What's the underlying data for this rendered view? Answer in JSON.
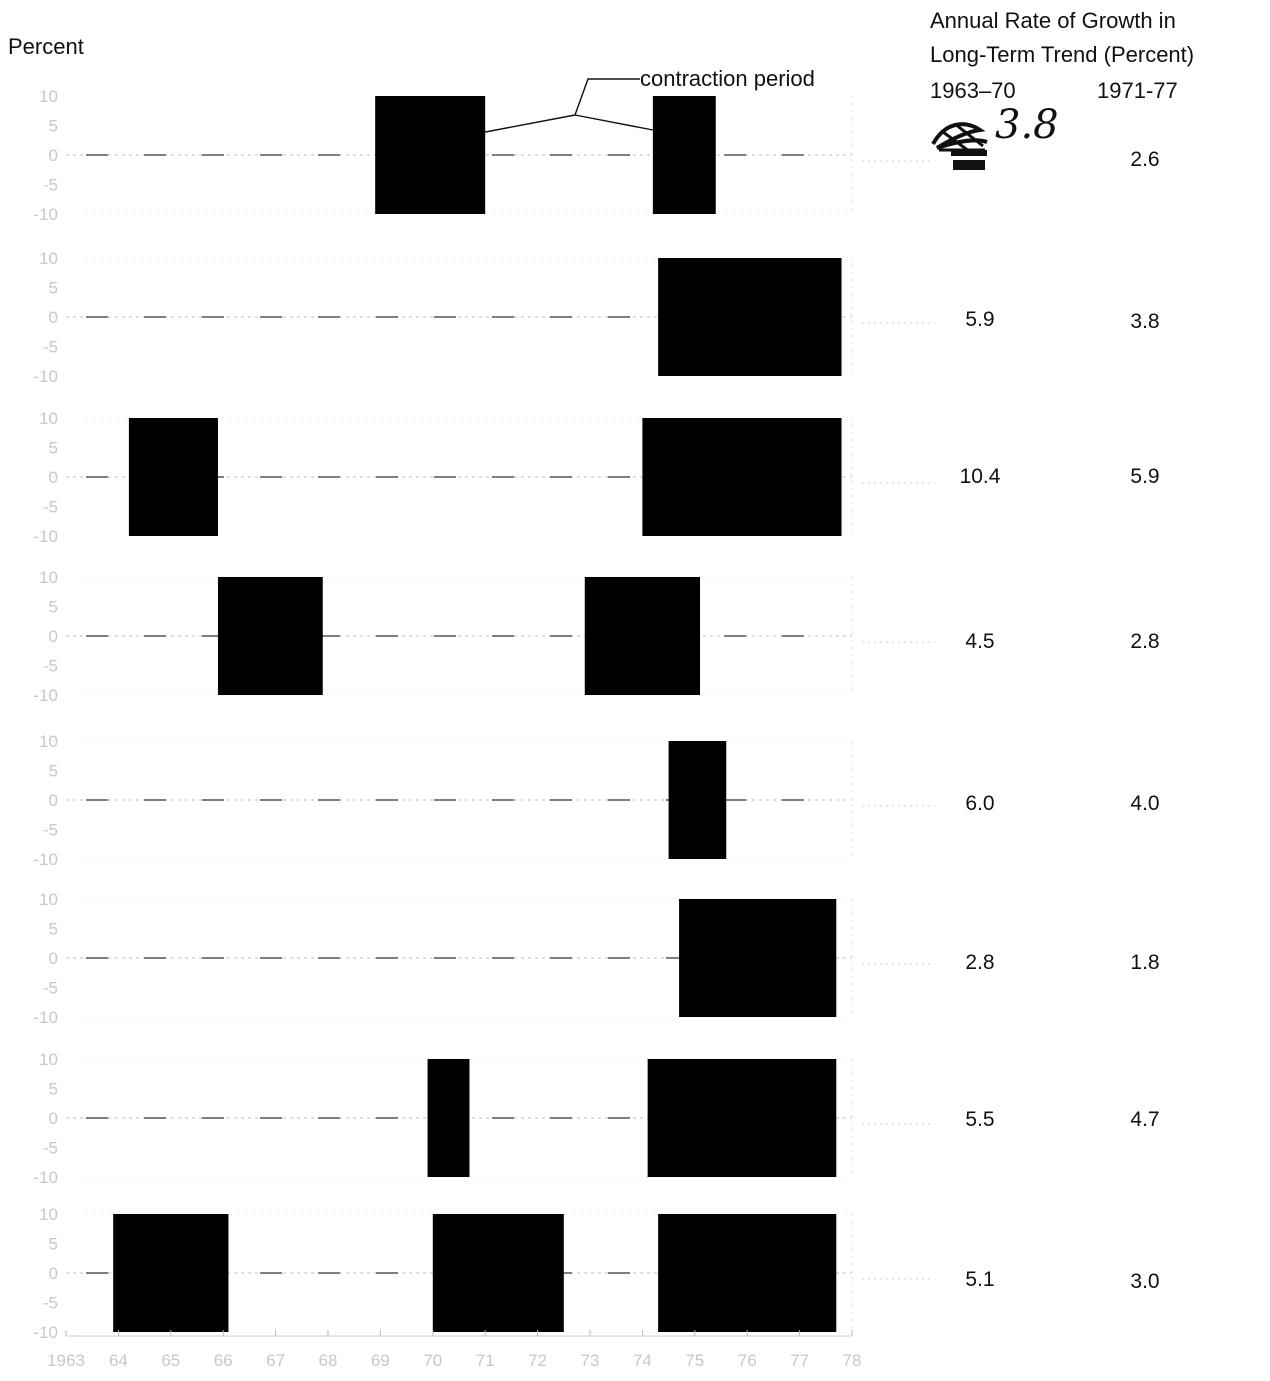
{
  "header": {
    "y_unit": "Percent",
    "annotation": "contraction period",
    "rate_title_line1": "Annual Rate of Growth in",
    "rate_title_line2": "Long-Term Trend (Percent)",
    "col1_label": "1963–70",
    "col2_label": "1971-77",
    "handwritten_value": "3.8"
  },
  "chart_data": {
    "type": "bar",
    "xlabel": "",
    "ylabel": "Percent",
    "x_tick_labels": [
      "1963",
      "64",
      "65",
      "66",
      "67",
      "68",
      "69",
      "70",
      "71",
      "72",
      "73",
      "74",
      "75",
      "76",
      "77",
      "78"
    ],
    "xlim": [
      1963,
      1978
    ],
    "y_tick_labels": [
      "10",
      "5",
      "0",
      "-5",
      "-10"
    ],
    "ylim": [
      -10,
      10
    ],
    "panels": [
      {
        "contraction_periods": [
          [
            1968.9,
            1971.0
          ],
          [
            1974.2,
            1975.4
          ]
        ],
        "rate_1963_70": "",
        "rate_1971_77": "2.6"
      },
      {
        "contraction_periods": [
          [
            1974.3,
            1977.8
          ]
        ],
        "rate_1963_70": "5.9",
        "rate_1971_77": "3.8"
      },
      {
        "contraction_periods": [
          [
            1964.2,
            1965.9
          ],
          [
            1974.0,
            1977.8
          ]
        ],
        "rate_1963_70": "10.4",
        "rate_1971_77": "5.9"
      },
      {
        "contraction_periods": [
          [
            1965.9,
            1967.9
          ],
          [
            1972.9,
            1975.1
          ]
        ],
        "rate_1963_70": "4.5",
        "rate_1971_77": "2.8"
      },
      {
        "contraction_periods": [
          [
            1974.5,
            1975.6
          ]
        ],
        "rate_1963_70": "6.0",
        "rate_1971_77": "4.0"
      },
      {
        "contraction_periods": [
          [
            1974.7,
            1977.7
          ]
        ],
        "rate_1963_70": "2.8",
        "rate_1971_77": "1.8"
      },
      {
        "contraction_periods": [
          [
            1969.9,
            1970.7
          ],
          [
            1974.1,
            1977.7
          ]
        ],
        "rate_1963_70": "5.5",
        "rate_1971_77": "4.7"
      },
      {
        "contraction_periods": [
          [
            1963.9,
            1966.1
          ],
          [
            1970.0,
            1972.5
          ],
          [
            1974.3,
            1977.7
          ]
        ],
        "rate_1963_70": "5.1",
        "rate_1971_77": "3.0"
      }
    ]
  }
}
